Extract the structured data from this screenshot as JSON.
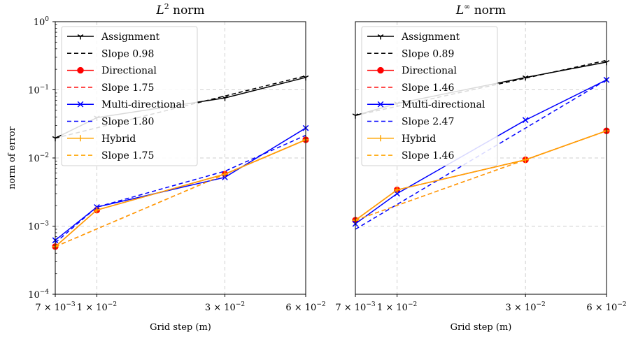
{
  "figure": {
    "ylabel": "norm of error"
  },
  "chart_data": [
    {
      "type": "line",
      "title_main": "norm",
      "title_symbol": "L",
      "title_sup": "2",
      "xlabel": "Grid step (m)",
      "ylabel": "norm of error",
      "xscale": "log",
      "yscale": "log",
      "xlim": [
        0.007,
        0.06
      ],
      "ylim": [
        0.0001,
        1
      ],
      "xticks": [
        {
          "v": 0.007,
          "m": "7",
          "e": "−3"
        },
        {
          "v": 0.01,
          "m": "1",
          "e": "−2"
        },
        {
          "v": 0.03,
          "m": "3",
          "e": "−2"
        },
        {
          "v": 0.06,
          "m": "6",
          "e": "−2"
        }
      ],
      "yticks": [
        {
          "v": 0.0001,
          "e": "−4"
        },
        {
          "v": 0.001,
          "e": "−3"
        },
        {
          "v": 0.01,
          "e": "−2"
        },
        {
          "v": 0.1,
          "e": "−1"
        },
        {
          "v": 1,
          "e": "0"
        }
      ],
      "grid": true,
      "legend_position": "upper-left",
      "series": [
        {
          "name": "Assignment",
          "color": "#000000",
          "style": "solid",
          "marker": "tri_down",
          "x": [
            0.007,
            0.01,
            0.03,
            0.06
          ],
          "y": [
            0.0195,
            0.039,
            0.076,
            0.152
          ]
        },
        {
          "name": "Slope 0.98",
          "color": "#000000",
          "style": "dashed",
          "marker": "none",
          "x": [
            0.007,
            0.06
          ],
          "y": [
            0.0195,
            0.16
          ]
        },
        {
          "name": "Directional",
          "color": "#ff0000",
          "style": "solid",
          "marker": "circle",
          "x": [
            0.007,
            0.01,
            0.03,
            0.06
          ],
          "y": [
            0.0005,
            0.00172,
            0.0058,
            0.0185
          ]
        },
        {
          "name": "Slope 1.75",
          "color": "#ff0000",
          "style": "dashed",
          "marker": "none",
          "x": [
            0.007,
            0.06
          ],
          "y": [
            0.0005,
            0.0185
          ]
        },
        {
          "name": "Multi-directional",
          "color": "#0000ff",
          "style": "solid",
          "marker": "x",
          "x": [
            0.007,
            0.01,
            0.03,
            0.06
          ],
          "y": [
            0.00062,
            0.0019,
            0.0052,
            0.0275
          ]
        },
        {
          "name": "Slope 1.80",
          "color": "#0000ff",
          "style": "dashed",
          "marker": "none",
          "x": [
            0.007,
            0.01,
            0.03,
            0.06
          ],
          "y": [
            0.00057,
            0.0019,
            0.0064,
            0.0215
          ]
        },
        {
          "name": "Hybrid",
          "color": "#ffa500",
          "style": "solid",
          "marker": "plus",
          "x": [
            0.007,
            0.01,
            0.03,
            0.06
          ],
          "y": [
            0.0005,
            0.00172,
            0.0058,
            0.0185
          ]
        },
        {
          "name": "Slope 1.75",
          "color": "#ffa500",
          "style": "dashed",
          "marker": "none",
          "x": [
            0.007,
            0.06
          ],
          "y": [
            0.0005,
            0.0185
          ]
        }
      ]
    },
    {
      "type": "line",
      "title_main": "norm",
      "title_symbol": "L",
      "title_sup": "∞",
      "xlabel": "Grid step (m)",
      "ylabel": "",
      "xscale": "log",
      "yscale": "log",
      "xlim": [
        0.007,
        0.06
      ],
      "ylim": [
        0.0001,
        1
      ],
      "xticks": [
        {
          "v": 0.007,
          "m": "7",
          "e": "−3"
        },
        {
          "v": 0.01,
          "m": "1",
          "e": "−2"
        },
        {
          "v": 0.03,
          "m": "3",
          "e": "−2"
        },
        {
          "v": 0.06,
          "m": "6",
          "e": "−2"
        }
      ],
      "yticks": [],
      "grid": true,
      "legend_position": "upper-left",
      "series": [
        {
          "name": "Assignment",
          "color": "#000000",
          "style": "solid",
          "marker": "tri_down",
          "x": [
            0.007,
            0.01,
            0.03,
            0.06
          ],
          "y": [
            0.042,
            0.063,
            0.152,
            0.255
          ]
        },
        {
          "name": "Slope 0.89",
          "color": "#000000",
          "style": "dashed",
          "marker": "none",
          "x": [
            0.007,
            0.06
          ],
          "y": [
            0.042,
            0.27
          ]
        },
        {
          "name": "Directional",
          "color": "#ff0000",
          "style": "solid",
          "marker": "circle",
          "x": [
            0.007,
            0.01,
            0.03,
            0.06
          ],
          "y": [
            0.00122,
            0.0034,
            0.0094,
            0.025
          ]
        },
        {
          "name": "Slope 1.46",
          "color": "#ff0000",
          "style": "dashed",
          "marker": "none",
          "x": [
            0.007,
            0.06
          ],
          "y": [
            0.00122,
            0.025
          ]
        },
        {
          "name": "Multi-directional",
          "color": "#0000ff",
          "style": "solid",
          "marker": "x",
          "x": [
            0.007,
            0.01,
            0.03,
            0.06
          ],
          "y": [
            0.00108,
            0.003,
            0.036,
            0.14
          ]
        },
        {
          "name": "Slope 2.47",
          "color": "#0000ff",
          "style": "dashed",
          "marker": "none",
          "x": [
            0.007,
            0.06
          ],
          "y": [
            0.0009,
            0.14
          ]
        },
        {
          "name": "Hybrid",
          "color": "#ffa500",
          "style": "solid",
          "marker": "plus",
          "x": [
            0.007,
            0.01,
            0.03,
            0.06
          ],
          "y": [
            0.00122,
            0.0034,
            0.0094,
            0.025
          ]
        },
        {
          "name": "Slope 1.46",
          "color": "#ffa500",
          "style": "dashed",
          "marker": "none",
          "x": [
            0.007,
            0.06
          ],
          "y": [
            0.00122,
            0.025
          ]
        }
      ]
    }
  ]
}
